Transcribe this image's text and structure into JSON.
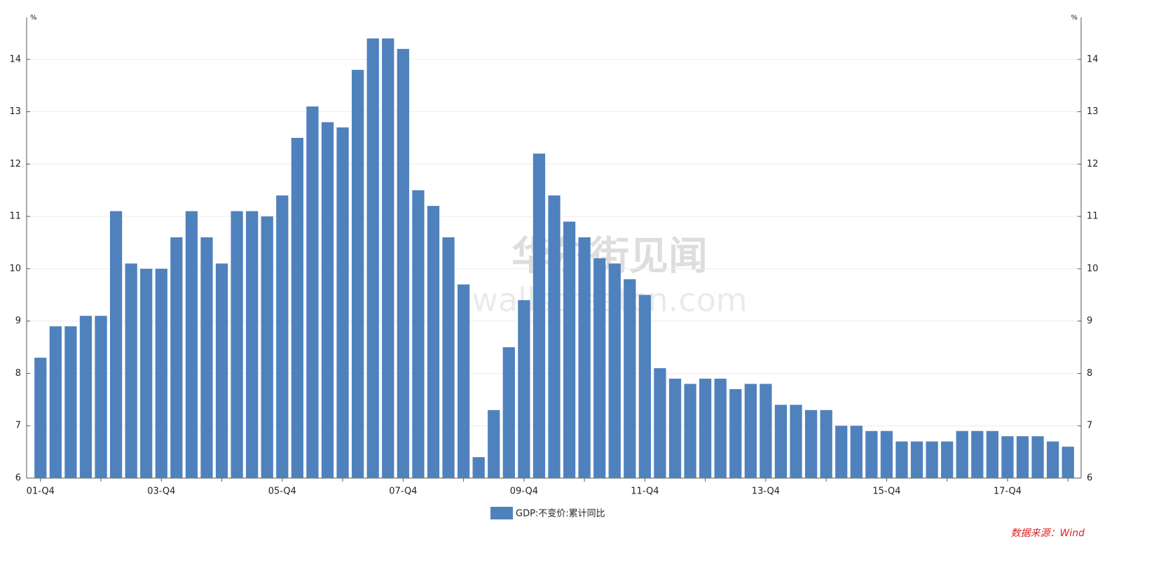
{
  "chart_data": {
    "type": "bar",
    "unit": "%",
    "categories": [
      "01-Q4",
      null,
      null,
      null,
      null,
      null,
      null,
      null,
      "03-Q4",
      null,
      null,
      null,
      null,
      null,
      null,
      null,
      "05-Q4",
      null,
      null,
      null,
      null,
      null,
      null,
      null,
      "07-Q4",
      null,
      null,
      null,
      null,
      null,
      null,
      null,
      "09-Q4",
      null,
      null,
      null,
      null,
      null,
      null,
      null,
      "11-Q4",
      null,
      null,
      null,
      null,
      null,
      null,
      null,
      "13-Q4",
      null,
      null,
      null,
      null,
      null,
      null,
      null,
      "15-Q4",
      null,
      null,
      null,
      null,
      null,
      null,
      null,
      "17-Q4",
      null,
      null,
      null,
      null
    ],
    "series": [
      {
        "name": "GDP:不变价:累计同比",
        "color": "#4f81bd",
        "values": [
          8.3,
          8.9,
          8.9,
          9.1,
          9.1,
          11.1,
          10.1,
          10.0,
          10.0,
          10.6,
          11.1,
          10.6,
          10.1,
          11.1,
          11.1,
          11.0,
          11.4,
          12.5,
          13.1,
          12.8,
          12.7,
          13.8,
          14.4,
          14.4,
          14.2,
          11.5,
          11.2,
          10.6,
          9.7,
          6.4,
          7.3,
          8.5,
          9.4,
          12.2,
          11.4,
          10.9,
          10.6,
          10.2,
          10.1,
          9.8,
          9.5,
          8.1,
          7.9,
          7.8,
          7.9,
          7.9,
          7.7,
          7.8,
          7.8,
          7.4,
          7.4,
          7.3,
          7.3,
          7.0,
          7.0,
          6.9,
          6.9,
          6.7,
          6.7,
          6.7,
          6.7,
          6.9,
          6.9,
          6.9,
          6.8,
          6.8,
          6.8,
          6.7,
          6.6
        ]
      }
    ],
    "ylim": [
      6,
      14.8
    ],
    "yticks": [
      6,
      7,
      8,
      9,
      10,
      11,
      12,
      13,
      14
    ],
    "grid": true,
    "legend": "bottom",
    "source": "数据来源：Wind",
    "watermark": [
      "华尔街见闻",
      "wallstreetcn.com"
    ]
  }
}
